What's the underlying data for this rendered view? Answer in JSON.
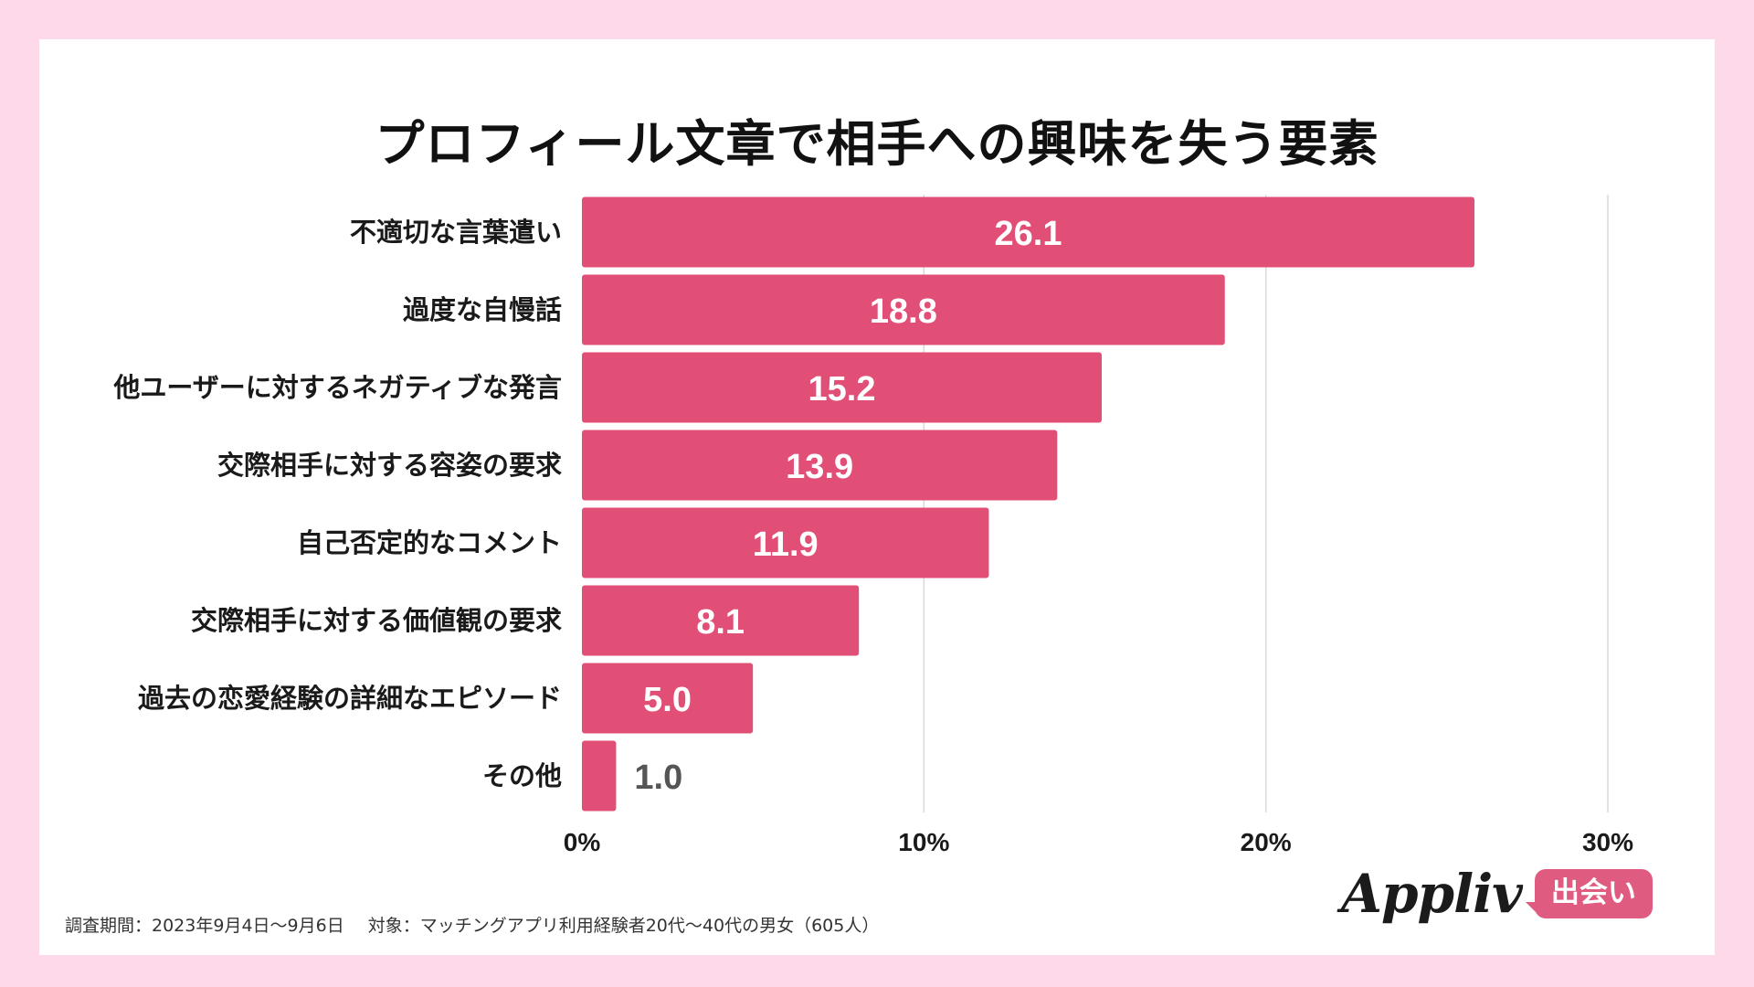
{
  "title": "プロフィール文章で相手への興味を失う要素",
  "chart_data": {
    "type": "bar",
    "orientation": "horizontal",
    "categories": [
      "不適切な言葉遣い",
      "過度な自慢話",
      "他ユーザーに対するネガティブな発言",
      "交際相手に対する容姿の要求",
      "自己否定的なコメント",
      "交際相手に対する価値観の要求",
      "過去の恋愛経験の詳細なエピソード",
      "その他"
    ],
    "values": [
      26.1,
      18.8,
      15.2,
      13.9,
      11.9,
      8.1,
      5.0,
      1.0
    ],
    "value_labels": [
      "26.1",
      "18.8",
      "15.2",
      "13.9",
      "11.9",
      "8.1",
      "5.0",
      "1.0"
    ],
    "xlim": [
      0,
      30
    ],
    "xticks": [
      0,
      10,
      20,
      30
    ],
    "xtick_labels": [
      "0%",
      "10%",
      "20%",
      "30%"
    ],
    "grid": true,
    "bar_color": "#e14f76"
  },
  "footnote": {
    "period": "調査期間：2023年9月4日〜9月6日",
    "target": "対象：マッチングアプリ利用経験者20代〜40代の男女（605人）"
  },
  "logo": {
    "brand": "Appliv",
    "badge": "出会い"
  },
  "colors": {
    "background": "#fdd9ea",
    "bar": "#e14f76",
    "badge": "#e05b80"
  }
}
